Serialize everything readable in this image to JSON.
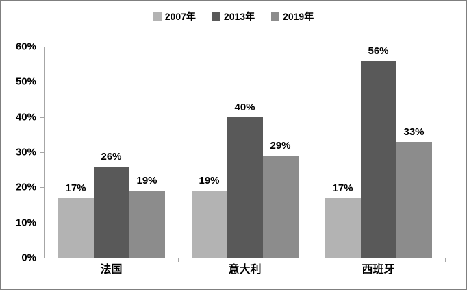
{
  "chart_data": {
    "type": "bar",
    "title": "",
    "categories": [
      "法国",
      "意大利",
      "西班牙"
    ],
    "series": [
      {
        "name": "2007年",
        "color": "#b3b3b3",
        "values": [
          17,
          19,
          17
        ]
      },
      {
        "name": "2013年",
        "color": "#595959",
        "values": [
          26,
          40,
          56
        ]
      },
      {
        "name": "2019年",
        "color": "#8c8c8c",
        "values": [
          19,
          29,
          33
        ]
      }
    ],
    "xlabel": "",
    "ylabel": "",
    "ylim": [
      0,
      60
    ],
    "ytick_step": 10,
    "ytick_labels": [
      "0%",
      "10%",
      "20%",
      "30%",
      "40%",
      "50%",
      "60%"
    ],
    "data_label_suffix": "%",
    "legend_position": "top",
    "grid": false,
    "axis_color": "#a6a6a6",
    "text_color": "#000000",
    "frame_border_color": "#7f7f7f",
    "background_color": "#ffffff"
  }
}
